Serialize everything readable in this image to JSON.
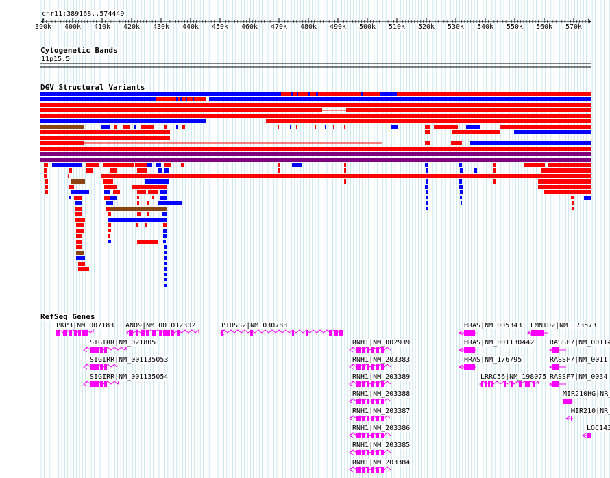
{
  "locus": "chr11:389168..574449",
  "ruler": {
    "ticks": [
      "390k",
      "400k",
      "410k",
      "420k",
      "430k",
      "440k",
      "450k",
      "460k",
      "470k",
      "480k",
      "490k",
      "500k",
      "510k",
      "520k",
      "530k",
      "540k",
      "550k",
      "560k",
      "570k"
    ]
  },
  "tracks": {
    "cytoband": {
      "title": "Cytogenetic Bands",
      "band": "11p15.5"
    },
    "dgv": {
      "title": "DGV Structural Variants"
    },
    "refseq": {
      "title": "RefSeq Genes"
    }
  },
  "colors": {
    "gain": "#ff0000",
    "loss": "#0000ff",
    "gain_loss": "#800080",
    "inversion": "#8b4513",
    "gene": "#ff00ff",
    "grid": "#add8e6"
  },
  "genes": [
    "PKP3|NM_007183",
    "ANO9|NM_001012302",
    "PTDSS2|NM_030783",
    "SIGIRR|NM_021805",
    "SIGIRR|NM_001135053",
    "SIGIRR|NM_001135054",
    "RNH1|NM_002939",
    "RNH1|NM_203383",
    "RNH1|NM_203389",
    "RNH1|NM_203388",
    "RNH1|NM_203387",
    "RNH1|NM_203386",
    "RNH1|NM_203385",
    "RNH1|NM_203384",
    "HRAS|NM_005343",
    "HRAS|NM_001130442",
    "HRAS|NM_176795",
    "LRRC56|NM_198075",
    "LMNTD2|NM_173573",
    "RASSF7|NM_00114",
    "RASSF7|NM_0011",
    "RASSF7|NM_0034",
    "MIR210HG|NR_",
    "MIR210|NR_",
    "LOC143"
  ]
}
